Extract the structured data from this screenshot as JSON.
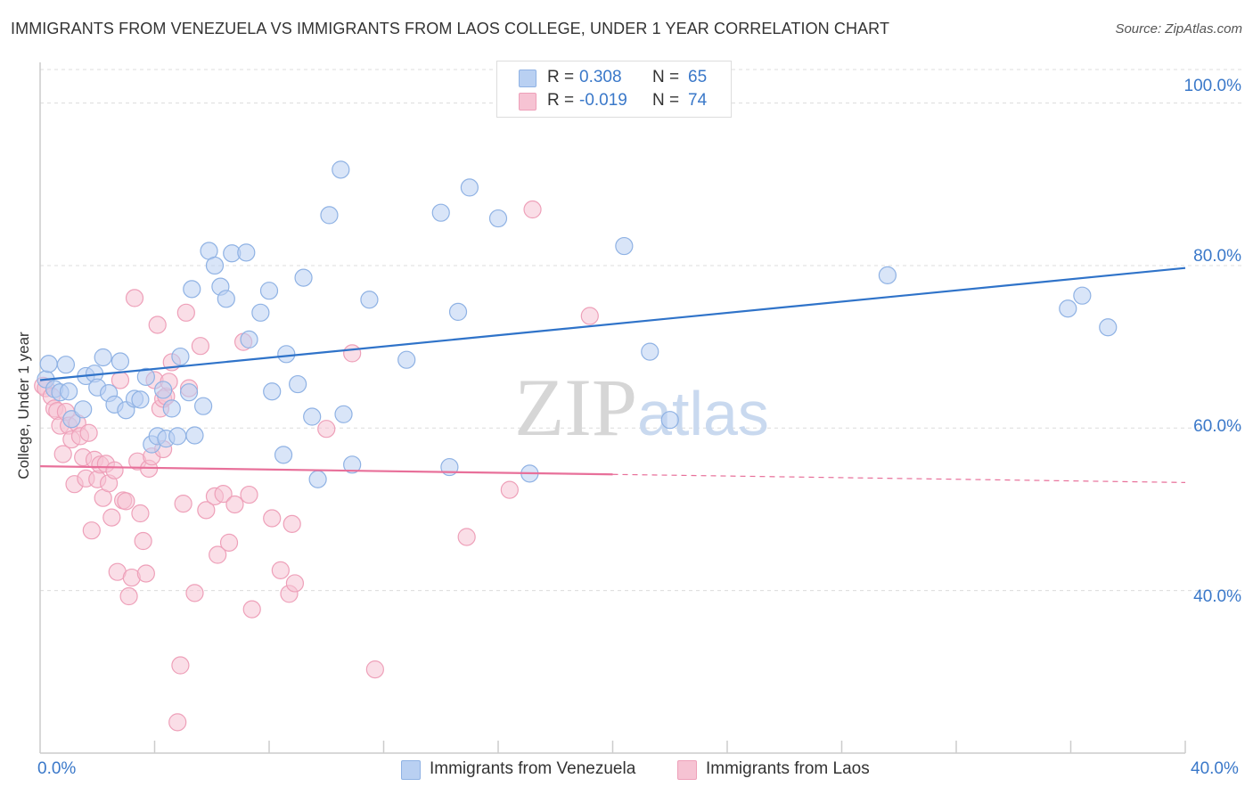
{
  "title": "IMMIGRANTS FROM VENEZUELA VS IMMIGRANTS FROM LAOS COLLEGE, UNDER 1 YEAR CORRELATION CHART",
  "source": "Source: ZipAtlas.com",
  "watermark": "ZIPatlas",
  "stats": {
    "series1": {
      "r_label": "R =",
      "r_value": "0.308",
      "n_label": "N =",
      "n_value": "65"
    },
    "series2": {
      "r_label": "R =",
      "r_value": "-0.019",
      "n_label": "N =",
      "n_value": "74"
    }
  },
  "legend": {
    "series1": "Immigrants from Venezuela",
    "series2": "Immigrants from Laos"
  },
  "colors": {
    "blue_fill": "#b9d0f2",
    "blue_stroke": "#8fb2e4",
    "blue_line": "#2f73c9",
    "pink_fill": "#f6c3d3",
    "pink_stroke": "#eea0b9",
    "pink_line": "#e8709a",
    "tick_text": "#3a78c9",
    "grid": "#dcdcdc"
  },
  "chart_data": {
    "type": "scatter",
    "title": "IMMIGRANTS FROM VENEZUELA VS IMMIGRANTS FROM LAOS COLLEGE, UNDER 1 YEAR CORRELATION CHART",
    "xlabel": "",
    "ylabel": "College, Under 1 year",
    "xlim": [
      0,
      40
    ],
    "ylim": [
      20,
      105
    ],
    "x_tick_labels": [
      "0.0%",
      "40.0%"
    ],
    "y_ticks": [
      40,
      60,
      80,
      100
    ],
    "y_tick_labels": [
      "40.0%",
      "60.0%",
      "80.0%",
      "100.0%"
    ],
    "grid": "horizontal dashed",
    "legend_position": "bottom-center",
    "series": [
      {
        "name": "Immigrants from Venezuela",
        "color": "#b9d0f2",
        "trend": {
          "x": [
            0,
            40
          ],
          "y": [
            65.9,
            79.7
          ],
          "style": "solid"
        },
        "points": [
          [
            0.2,
            66.0
          ],
          [
            0.3,
            67.9
          ],
          [
            0.5,
            64.8
          ],
          [
            0.7,
            64.4
          ],
          [
            0.9,
            67.8
          ],
          [
            1.0,
            64.5
          ],
          [
            1.1,
            61.1
          ],
          [
            1.5,
            62.3
          ],
          [
            1.6,
            66.4
          ],
          [
            1.9,
            66.7
          ],
          [
            2.0,
            65.0
          ],
          [
            2.2,
            68.7
          ],
          [
            2.4,
            64.3
          ],
          [
            2.6,
            62.9
          ],
          [
            2.8,
            68.2
          ],
          [
            3.0,
            62.2
          ],
          [
            3.3,
            63.6
          ],
          [
            3.5,
            63.5
          ],
          [
            3.7,
            66.3
          ],
          [
            3.9,
            58.0
          ],
          [
            4.1,
            59.0
          ],
          [
            4.3,
            64.7
          ],
          [
            4.4,
            58.7
          ],
          [
            4.6,
            62.4
          ],
          [
            4.8,
            59.0
          ],
          [
            4.9,
            68.8
          ],
          [
            5.2,
            64.4
          ],
          [
            5.3,
            77.1
          ],
          [
            5.4,
            59.1
          ],
          [
            5.7,
            62.7
          ],
          [
            5.9,
            81.8
          ],
          [
            6.1,
            80.0
          ],
          [
            6.3,
            77.4
          ],
          [
            6.5,
            75.9
          ],
          [
            6.7,
            81.5
          ],
          [
            7.2,
            81.6
          ],
          [
            7.3,
            70.9
          ],
          [
            7.7,
            74.2
          ],
          [
            8.0,
            76.9
          ],
          [
            8.1,
            64.5
          ],
          [
            8.5,
            56.7
          ],
          [
            8.6,
            69.1
          ],
          [
            9.0,
            65.4
          ],
          [
            9.2,
            78.5
          ],
          [
            9.5,
            61.4
          ],
          [
            9.7,
            53.7
          ],
          [
            10.1,
            86.2
          ],
          [
            10.5,
            91.8
          ],
          [
            10.6,
            61.7
          ],
          [
            10.9,
            55.5
          ],
          [
            11.5,
            75.8
          ],
          [
            12.8,
            68.4
          ],
          [
            14.0,
            86.5
          ],
          [
            14.3,
            55.2
          ],
          [
            14.6,
            74.3
          ],
          [
            15.0,
            89.6
          ],
          [
            16.0,
            85.8
          ],
          [
            17.1,
            54.4
          ],
          [
            20.4,
            82.4
          ],
          [
            21.3,
            69.4
          ],
          [
            22.0,
            61.0
          ],
          [
            29.6,
            78.8
          ],
          [
            35.9,
            74.7
          ],
          [
            36.4,
            76.3
          ],
          [
            37.3,
            72.4
          ]
        ]
      },
      {
        "name": "Immigrants from Laos",
        "color": "#f6c3d3",
        "trend": {
          "x": [
            0,
            20,
            40
          ],
          "y": [
            55.3,
            54.3,
            53.3
          ],
          "style": "solid to x=20, dashed after"
        },
        "points": [
          [
            0.1,
            65.2
          ],
          [
            0.2,
            64.9
          ],
          [
            0.4,
            63.9
          ],
          [
            0.5,
            62.4
          ],
          [
            0.6,
            62.1
          ],
          [
            0.7,
            60.3
          ],
          [
            0.8,
            56.8
          ],
          [
            0.9,
            62.0
          ],
          [
            1.0,
            60.3
          ],
          [
            1.1,
            58.6
          ],
          [
            1.2,
            53.1
          ],
          [
            1.3,
            60.6
          ],
          [
            1.4,
            59.0
          ],
          [
            1.5,
            56.4
          ],
          [
            1.6,
            53.8
          ],
          [
            1.7,
            59.4
          ],
          [
            1.8,
            47.4
          ],
          [
            1.9,
            56.1
          ],
          [
            2.0,
            53.7
          ],
          [
            2.1,
            55.5
          ],
          [
            2.2,
            51.4
          ],
          [
            2.3,
            55.6
          ],
          [
            2.4,
            53.2
          ],
          [
            2.5,
            49.0
          ],
          [
            2.6,
            54.8
          ],
          [
            2.7,
            42.3
          ],
          [
            2.8,
            65.9
          ],
          [
            2.9,
            51.1
          ],
          [
            3.0,
            51.0
          ],
          [
            3.1,
            39.3
          ],
          [
            3.2,
            41.6
          ],
          [
            3.3,
            76.0
          ],
          [
            3.4,
            55.9
          ],
          [
            3.5,
            49.5
          ],
          [
            3.6,
            46.1
          ],
          [
            3.7,
            42.1
          ],
          [
            3.8,
            55.0
          ],
          [
            3.9,
            56.5
          ],
          [
            4.0,
            65.9
          ],
          [
            4.1,
            72.7
          ],
          [
            4.2,
            62.4
          ],
          [
            4.3,
            63.6
          ],
          [
            4.4,
            63.9
          ],
          [
            4.5,
            65.7
          ],
          [
            4.6,
            68.1
          ],
          [
            4.8,
            23.8
          ],
          [
            4.9,
            30.8
          ],
          [
            5.0,
            50.7
          ],
          [
            5.1,
            74.2
          ],
          [
            5.2,
            64.9
          ],
          [
            5.4,
            39.7
          ],
          [
            5.6,
            70.1
          ],
          [
            5.8,
            49.9
          ],
          [
            6.1,
            51.6
          ],
          [
            6.2,
            44.4
          ],
          [
            6.4,
            51.9
          ],
          [
            6.6,
            45.9
          ],
          [
            6.8,
            50.6
          ],
          [
            7.1,
            70.6
          ],
          [
            7.3,
            51.8
          ],
          [
            7.4,
            37.7
          ],
          [
            8.1,
            48.9
          ],
          [
            8.4,
            42.5
          ],
          [
            8.7,
            39.6
          ],
          [
            8.8,
            48.2
          ],
          [
            8.9,
            40.9
          ],
          [
            10.0,
            59.9
          ],
          [
            10.9,
            69.2
          ],
          [
            11.7,
            30.3
          ],
          [
            14.9,
            46.6
          ],
          [
            16.4,
            52.4
          ],
          [
            17.2,
            86.9
          ],
          [
            19.2,
            73.8
          ],
          [
            4.3,
            57.4
          ]
        ]
      }
    ]
  }
}
